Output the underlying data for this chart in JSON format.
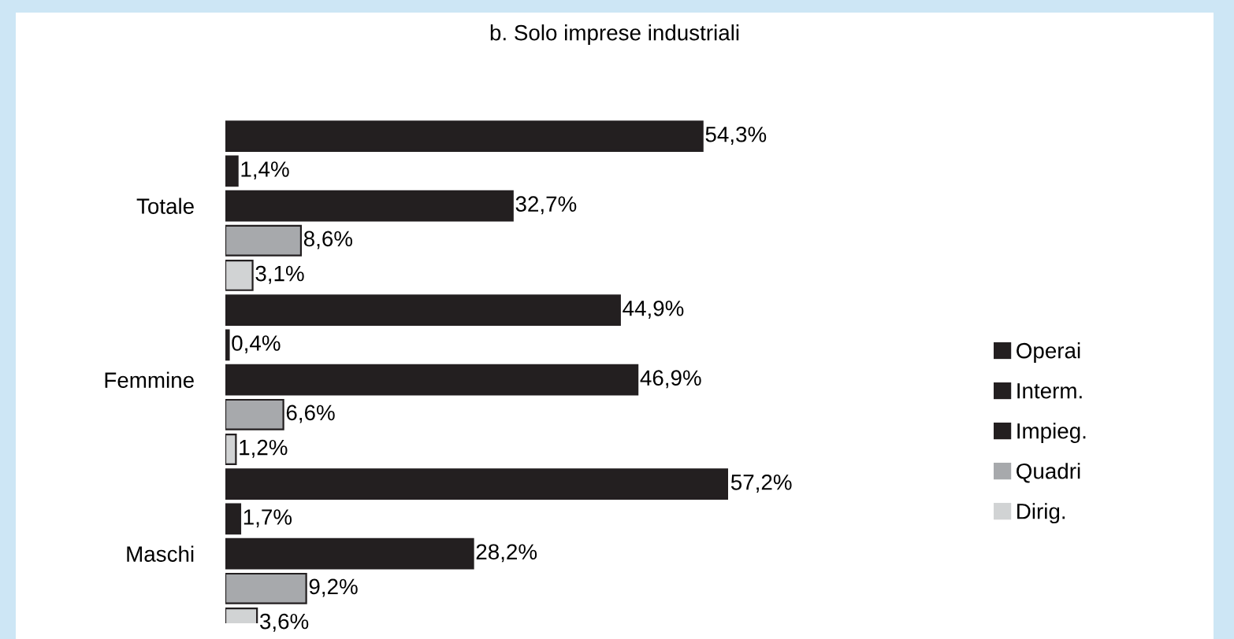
{
  "chart_data": {
    "type": "bar",
    "orientation": "horizontal",
    "title": "b. Solo imprese industriali",
    "categories": [
      "Totale",
      "Femmine",
      "Maschi"
    ],
    "series": [
      {
        "name": "Operai",
        "color": "#231f20",
        "values": [
          54.3,
          44.9,
          57.2
        ],
        "value_labels": [
          "54,3%",
          "44,9%",
          "57,2%"
        ]
      },
      {
        "name": "Interm.",
        "color": "#231f20",
        "values": [
          1.4,
          0.4,
          1.7
        ],
        "value_labels": [
          "1,4%",
          "0,4%",
          "1,7%"
        ]
      },
      {
        "name": "Impieg.",
        "color": "#231f20",
        "values": [
          32.7,
          46.9,
          28.2
        ],
        "value_labels": [
          "32,7%",
          "46,9%",
          "28,2%"
        ]
      },
      {
        "name": "Quadri",
        "color": "#a7a9ac",
        "values": [
          8.6,
          6.6,
          9.2
        ],
        "value_labels": [
          "8,6%",
          "6,6%",
          "9,2%"
        ]
      },
      {
        "name": "Dirig.",
        "color": "#d1d3d4",
        "values": [
          3.1,
          1.2,
          3.6
        ],
        "value_labels": [
          "3,1%",
          "1,2%",
          "3,6%"
        ]
      }
    ],
    "tick_labels": "y",
    "legend": "right"
  }
}
